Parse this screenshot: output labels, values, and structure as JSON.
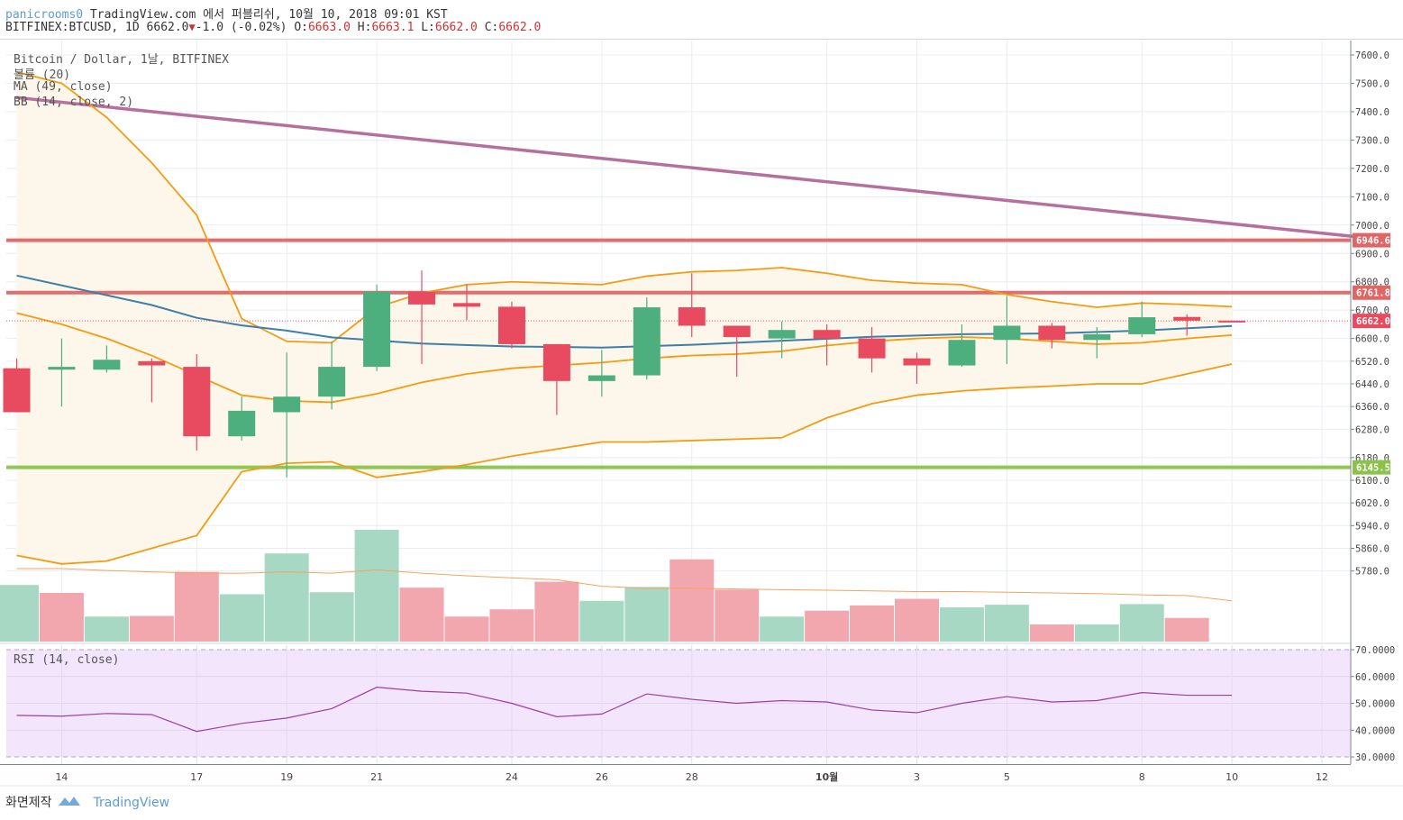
{
  "header": {
    "user": "panicrooms0",
    "published": "TradingView.com 에서 퍼블리쉬, 10월 10, 2018 09:01 KST",
    "symbol": "BITFINEX:BTCUSD, 1D",
    "last": "6662.0",
    "change": "-1.0 (-0.02%)",
    "o_label": "O:",
    "o": "6663.0",
    "h_label": "H:",
    "h": "6663.1",
    "l_label": "L:",
    "l": "6662.0",
    "c_label": "C:",
    "c": "6662.0"
  },
  "legend": {
    "title": "Bitcoin / Dollar, 1날, BITFINEX",
    "volume": "볼륨 (20)",
    "ma": "MA (49, close)",
    "bb": "BB (14, close, 2)",
    "rsi": "RSI (14, close)"
  },
  "footer": {
    "label": "화면제작",
    "brand": "TradingView"
  },
  "chart_data": {
    "type": "candlestick",
    "colors": {
      "up": "#4caf7d",
      "down": "#e84a5f",
      "vol_up": "#a6d8c3",
      "vol_down": "#f2a6ae",
      "ma": "#3d7fa8",
      "bb": "#f39c12",
      "bb_fill": "#fdf6ea",
      "trendline": "#b5709e",
      "resistance": "#e06666",
      "support": "#8bc34a",
      "rsi_line": "#9c3fa3",
      "rsi_fill": "#f3e5fb",
      "vol_ma": "#f4a460"
    },
    "x_labels": [
      {
        "i": 1,
        "label": "14"
      },
      {
        "i": 4,
        "label": "17"
      },
      {
        "i": 6,
        "label": "19"
      },
      {
        "i": 8,
        "label": "21"
      },
      {
        "i": 11,
        "label": "24"
      },
      {
        "i": 13,
        "label": "26"
      },
      {
        "i": 15,
        "label": "28"
      },
      {
        "i": 18,
        "label": "10월"
      },
      {
        "i": 20,
        "label": "3"
      },
      {
        "i": 22,
        "label": "5"
      },
      {
        "i": 25,
        "label": "8"
      },
      {
        "i": 27,
        "label": "10"
      },
      {
        "i": 29,
        "label": "12"
      }
    ],
    "price_axis": {
      "ticks": [
        7600,
        7500,
        7400,
        7300,
        7200,
        7100,
        7000,
        6900,
        6800,
        6700,
        6600,
        6520,
        6440,
        6360,
        6280,
        6180,
        6100,
        6020,
        5940,
        5860,
        5780
      ]
    },
    "candles": [
      {
        "i": 0,
        "o": 6495,
        "h": 6530,
        "l": 6340,
        "c": 6340
      },
      {
        "i": 1,
        "o": 6490,
        "h": 6600,
        "l": 6360,
        "c": 6500
      },
      {
        "i": 2,
        "o": 6490,
        "h": 6575,
        "l": 6480,
        "c": 6525
      },
      {
        "i": 3,
        "o": 6520,
        "h": 6530,
        "l": 6375,
        "c": 6505
      },
      {
        "i": 4,
        "o": 6500,
        "h": 6545,
        "l": 6205,
        "c": 6255
      },
      {
        "i": 5,
        "o": 6255,
        "h": 6395,
        "l": 6240,
        "c": 6345
      },
      {
        "i": 6,
        "o": 6340,
        "h": 6550,
        "l": 6110,
        "c": 6395
      },
      {
        "i": 7,
        "o": 6395,
        "h": 6590,
        "l": 6350,
        "c": 6500
      },
      {
        "i": 8,
        "o": 6500,
        "h": 6790,
        "l": 6485,
        "c": 6765
      },
      {
        "i": 9,
        "o": 6765,
        "h": 6840,
        "l": 6510,
        "c": 6720
      },
      {
        "i": 10,
        "o": 6725,
        "h": 6790,
        "l": 6665,
        "c": 6712
      },
      {
        "i": 11,
        "o": 6712,
        "h": 6730,
        "l": 6565,
        "c": 6580
      },
      {
        "i": 12,
        "o": 6580,
        "h": 6580,
        "l": 6330,
        "c": 6450
      },
      {
        "i": 13,
        "o": 6450,
        "h": 6560,
        "l": 6395,
        "c": 6470
      },
      {
        "i": 14,
        "o": 6470,
        "h": 6745,
        "l": 6455,
        "c": 6710
      },
      {
        "i": 15,
        "o": 6710,
        "h": 6830,
        "l": 6605,
        "c": 6645
      },
      {
        "i": 16,
        "o": 6645,
        "h": 6645,
        "l": 6465,
        "c": 6605
      },
      {
        "i": 17,
        "o": 6600,
        "h": 6660,
        "l": 6530,
        "c": 6630
      },
      {
        "i": 18,
        "o": 6630,
        "h": 6650,
        "l": 6505,
        "c": 6600
      },
      {
        "i": 19,
        "o": 6600,
        "h": 6640,
        "l": 6480,
        "c": 6530
      },
      {
        "i": 20,
        "o": 6530,
        "h": 6550,
        "l": 6440,
        "c": 6505
      },
      {
        "i": 21,
        "o": 6505,
        "h": 6650,
        "l": 6500,
        "c": 6595
      },
      {
        "i": 22,
        "o": 6595,
        "h": 6750,
        "l": 6510,
        "c": 6645
      },
      {
        "i": 23,
        "o": 6645,
        "h": 6655,
        "l": 6565,
        "c": 6595
      },
      {
        "i": 24,
        "o": 6595,
        "h": 6640,
        "l": 6530,
        "c": 6615
      },
      {
        "i": 25,
        "o": 6615,
        "h": 6730,
        "l": 6605,
        "c": 6675
      },
      {
        "i": 26,
        "o": 6676,
        "h": 6685,
        "l": 6610,
        "c": 6663
      },
      {
        "i": 27,
        "o": 6663,
        "h": 6663.1,
        "l": 6662,
        "c": 6662
      }
    ],
    "volume": [
      {
        "i": 0,
        "v": 86,
        "up": true
      },
      {
        "i": 1,
        "v": 74,
        "up": false
      },
      {
        "i": 2,
        "v": 38,
        "up": true
      },
      {
        "i": 3,
        "v": 39,
        "up": false
      },
      {
        "i": 4,
        "v": 106,
        "up": false
      },
      {
        "i": 5,
        "v": 72,
        "up": true
      },
      {
        "i": 6,
        "v": 134,
        "up": true
      },
      {
        "i": 7,
        "v": 75,
        "up": true
      },
      {
        "i": 8,
        "v": 170,
        "up": true
      },
      {
        "i": 9,
        "v": 82,
        "up": false
      },
      {
        "i": 10,
        "v": 38,
        "up": false
      },
      {
        "i": 11,
        "v": 49,
        "up": false
      },
      {
        "i": 12,
        "v": 91,
        "up": false
      },
      {
        "i": 13,
        "v": 62,
        "up": true
      },
      {
        "i": 14,
        "v": 83,
        "up": true
      },
      {
        "i": 15,
        "v": 125,
        "up": false
      },
      {
        "i": 16,
        "v": 79,
        "up": false
      },
      {
        "i": 17,
        "v": 38,
        "up": true
      },
      {
        "i": 18,
        "v": 47,
        "up": false
      },
      {
        "i": 19,
        "v": 55,
        "up": false
      },
      {
        "i": 20,
        "v": 65,
        "up": false
      },
      {
        "i": 21,
        "v": 52,
        "up": true
      },
      {
        "i": 22,
        "v": 56,
        "up": true
      },
      {
        "i": 23,
        "v": 26,
        "up": false
      },
      {
        "i": 24,
        "v": 26,
        "up": true
      },
      {
        "i": 25,
        "v": 57,
        "up": true
      },
      {
        "i": 26,
        "v": 36,
        "up": false
      }
    ],
    "volume_ma": [
      111,
      111,
      108,
      106,
      104,
      104,
      106,
      104,
      109,
      104,
      100,
      97,
      94,
      84,
      81,
      81,
      80,
      79,
      78,
      77,
      76,
      76,
      75,
      74,
      73,
      71,
      70,
      62
    ],
    "ma49": [
      {
        "i": 0,
        "v": 6822
      },
      {
        "i": 3,
        "v": 6718
      },
      {
        "i": 4,
        "v": 6673
      },
      {
        "i": 5,
        "v": 6646
      },
      {
        "i": 6,
        "v": 6628
      },
      {
        "i": 7,
        "v": 6604
      },
      {
        "i": 9,
        "v": 6582
      },
      {
        "i": 11,
        "v": 6572
      },
      {
        "i": 13,
        "v": 6568
      },
      {
        "i": 15,
        "v": 6578
      },
      {
        "i": 17,
        "v": 6592
      },
      {
        "i": 19,
        "v": 6606
      },
      {
        "i": 21,
        "v": 6615
      },
      {
        "i": 23,
        "v": 6618
      },
      {
        "i": 25,
        "v": 6628
      },
      {
        "i": 27,
        "v": 6644
      }
    ],
    "bb_upper": [
      {
        "i": 0,
        "v": 7540
      },
      {
        "i": 1,
        "v": 7500
      },
      {
        "i": 2,
        "v": 7380
      },
      {
        "i": 3,
        "v": 7220
      },
      {
        "i": 4,
        "v": 7035
      },
      {
        "i": 5,
        "v": 6670
      },
      {
        "i": 6,
        "v": 6590
      },
      {
        "i": 7,
        "v": 6585
      },
      {
        "i": 8,
        "v": 6710
      },
      {
        "i": 9,
        "v": 6760
      },
      {
        "i": 10,
        "v": 6790
      },
      {
        "i": 11,
        "v": 6800
      },
      {
        "i": 12,
        "v": 6795
      },
      {
        "i": 13,
        "v": 6790
      },
      {
        "i": 14,
        "v": 6820
      },
      {
        "i": 15,
        "v": 6835
      },
      {
        "i": 16,
        "v": 6840
      },
      {
        "i": 17,
        "v": 6850
      },
      {
        "i": 18,
        "v": 6830
      },
      {
        "i": 19,
        "v": 6805
      },
      {
        "i": 20,
        "v": 6795
      },
      {
        "i": 21,
        "v": 6790
      },
      {
        "i": 22,
        "v": 6755
      },
      {
        "i": 23,
        "v": 6730
      },
      {
        "i": 24,
        "v": 6710
      },
      {
        "i": 25,
        "v": 6725
      },
      {
        "i": 26,
        "v": 6720
      },
      {
        "i": 27,
        "v": 6712
      }
    ],
    "bb_basis": [
      {
        "i": 0,
        "v": 6690
      },
      {
        "i": 1,
        "v": 6650
      },
      {
        "i": 2,
        "v": 6600
      },
      {
        "i": 3,
        "v": 6540
      },
      {
        "i": 4,
        "v": 6470
      },
      {
        "i": 5,
        "v": 6400
      },
      {
        "i": 6,
        "v": 6380
      },
      {
        "i": 7,
        "v": 6375
      },
      {
        "i": 8,
        "v": 6405
      },
      {
        "i": 9,
        "v": 6445
      },
      {
        "i": 10,
        "v": 6475
      },
      {
        "i": 11,
        "v": 6495
      },
      {
        "i": 12,
        "v": 6505
      },
      {
        "i": 13,
        "v": 6515
      },
      {
        "i": 14,
        "v": 6530
      },
      {
        "i": 15,
        "v": 6540
      },
      {
        "i": 16,
        "v": 6545
      },
      {
        "i": 17,
        "v": 6555
      },
      {
        "i": 18,
        "v": 6575
      },
      {
        "i": 19,
        "v": 6590
      },
      {
        "i": 20,
        "v": 6600
      },
      {
        "i": 21,
        "v": 6605
      },
      {
        "i": 22,
        "v": 6600
      },
      {
        "i": 23,
        "v": 6590
      },
      {
        "i": 24,
        "v": 6580
      },
      {
        "i": 25,
        "v": 6585
      },
      {
        "i": 26,
        "v": 6600
      },
      {
        "i": 27,
        "v": 6612
      }
    ],
    "bb_lower": [
      {
        "i": 0,
        "v": 5835
      },
      {
        "i": 1,
        "v": 5805
      },
      {
        "i": 2,
        "v": 5815
      },
      {
        "i": 3,
        "v": 5860
      },
      {
        "i": 4,
        "v": 5905
      },
      {
        "i": 5,
        "v": 6130
      },
      {
        "i": 6,
        "v": 6160
      },
      {
        "i": 7,
        "v": 6165
      },
      {
        "i": 8,
        "v": 6110
      },
      {
        "i": 9,
        "v": 6130
      },
      {
        "i": 10,
        "v": 6155
      },
      {
        "i": 11,
        "v": 6185
      },
      {
        "i": 12,
        "v": 6210
      },
      {
        "i": 13,
        "v": 6235
      },
      {
        "i": 14,
        "v": 6235
      },
      {
        "i": 15,
        "v": 6240
      },
      {
        "i": 16,
        "v": 6245
      },
      {
        "i": 17,
        "v": 6250
      },
      {
        "i": 18,
        "v": 6320
      },
      {
        "i": 19,
        "v": 6370
      },
      {
        "i": 20,
        "v": 6400
      },
      {
        "i": 21,
        "v": 6415
      },
      {
        "i": 22,
        "v": 6425
      },
      {
        "i": 23,
        "v": 6432
      },
      {
        "i": 24,
        "v": 6440
      },
      {
        "i": 25,
        "v": 6440
      },
      {
        "i": 26,
        "v": 6475
      },
      {
        "i": 27,
        "v": 6510
      }
    ],
    "trendline": {
      "start": {
        "i": -0.02,
        "v": 7450
      },
      "end": {
        "i": 29.7,
        "v": 6960
      }
    },
    "h_levels": [
      {
        "name": "resistance-1",
        "v": 6946.6,
        "label": "6946.6"
      },
      {
        "name": "resistance-2",
        "v": 6761.8,
        "label": "6761.8"
      },
      {
        "name": "support",
        "v": 6145.5,
        "label": "6145.5"
      }
    ],
    "last_price": {
      "v": 6662.0,
      "label": "6662.0"
    },
    "rsi": {
      "ticks": [
        70,
        60,
        50,
        40,
        30
      ],
      "tick_labels": [
        "70.0000",
        "60.0000",
        "50.0000",
        "40.0000",
        "30.0000"
      ],
      "band_top": 70,
      "band_bottom": 30,
      "values": [
        {
          "i": 0,
          "v": 45.5
        },
        {
          "i": 1,
          "v": 45.2
        },
        {
          "i": 2,
          "v": 46.2
        },
        {
          "i": 3,
          "v": 45.8
        },
        {
          "i": 4,
          "v": 39.5
        },
        {
          "i": 5,
          "v": 42.5
        },
        {
          "i": 6,
          "v": 44.5
        },
        {
          "i": 7,
          "v": 48
        },
        {
          "i": 8,
          "v": 56
        },
        {
          "i": 9,
          "v": 54.5
        },
        {
          "i": 10,
          "v": 53.8
        },
        {
          "i": 11,
          "v": 50
        },
        {
          "i": 12,
          "v": 45
        },
        {
          "i": 13,
          "v": 46
        },
        {
          "i": 14,
          "v": 53.5
        },
        {
          "i": 15,
          "v": 51.5
        },
        {
          "i": 16,
          "v": 50
        },
        {
          "i": 17,
          "v": 51
        },
        {
          "i": 18,
          "v": 50.5
        },
        {
          "i": 19,
          "v": 47.5
        },
        {
          "i": 20,
          "v": 46.5
        },
        {
          "i": 21,
          "v": 50
        },
        {
          "i": 22,
          "v": 52.5
        },
        {
          "i": 23,
          "v": 50.5
        },
        {
          "i": 24,
          "v": 51
        },
        {
          "i": 25,
          "v": 54
        },
        {
          "i": 26,
          "v": 53
        },
        {
          "i": 27,
          "v": 53
        }
      ]
    }
  }
}
